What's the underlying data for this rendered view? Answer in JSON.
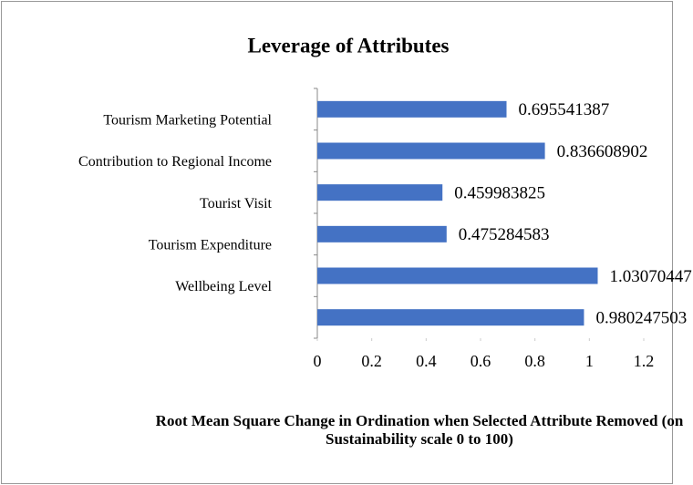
{
  "chart_data": {
    "type": "bar",
    "orientation": "horizontal",
    "title": "Leverage of Attributes",
    "x_label": "Root Mean Square Change in Ordination when Selected Attribute Removed (on Sustainability scale 0 to 100)",
    "categories": [
      "Tourism Marketing Potential",
      "Contribution to Regional Income",
      "Tourist Visit",
      "Tourism Expenditure",
      "Wellbeing Level",
      null
    ],
    "values": [
      0.695541387,
      0.836608902,
      0.459983825,
      0.475284583,
      1.03070447,
      0.980247503
    ],
    "color": "#4472c4",
    "xlim": [
      0,
      1.2
    ],
    "xticks": [
      0,
      0.2,
      0.4,
      0.6,
      0.8,
      1,
      1.2
    ]
  }
}
